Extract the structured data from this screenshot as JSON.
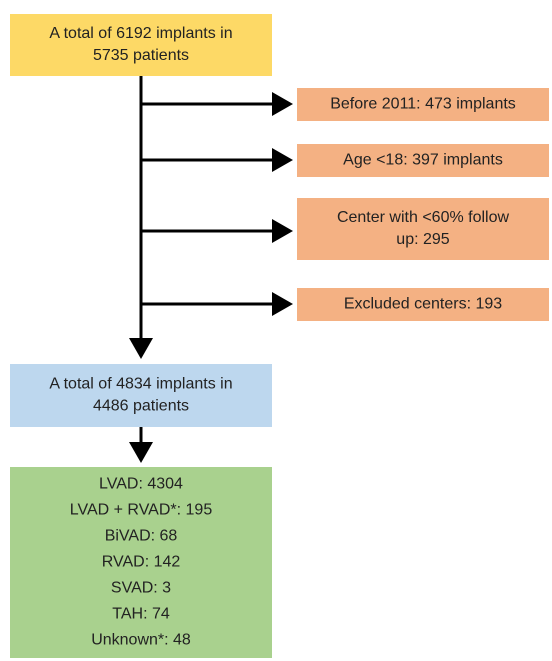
{
  "nodes": [
    {
      "lines": [
        "A total of 6192 implants in",
        "5735 patients"
      ]
    },
    {
      "lines": [
        "Before 2011: 473 implants"
      ]
    },
    {
      "lines": [
        "Age <18: 397 implants"
      ]
    },
    {
      "lines": [
        "Center with <60% follow",
        "up: 295"
      ]
    },
    {
      "lines": [
        "Excluded centers: 193"
      ]
    },
    {
      "lines": [
        "A total of 4834 implants in",
        "4486 patients"
      ]
    },
    {
      "lines": [
        "LVAD: 4304",
        "LVAD + RVAD*: 195",
        "BiVAD: 68",
        "RVAD: 142",
        "SVAD: 3",
        "TAH: 74",
        "Unknown*: 48"
      ]
    }
  ]
}
